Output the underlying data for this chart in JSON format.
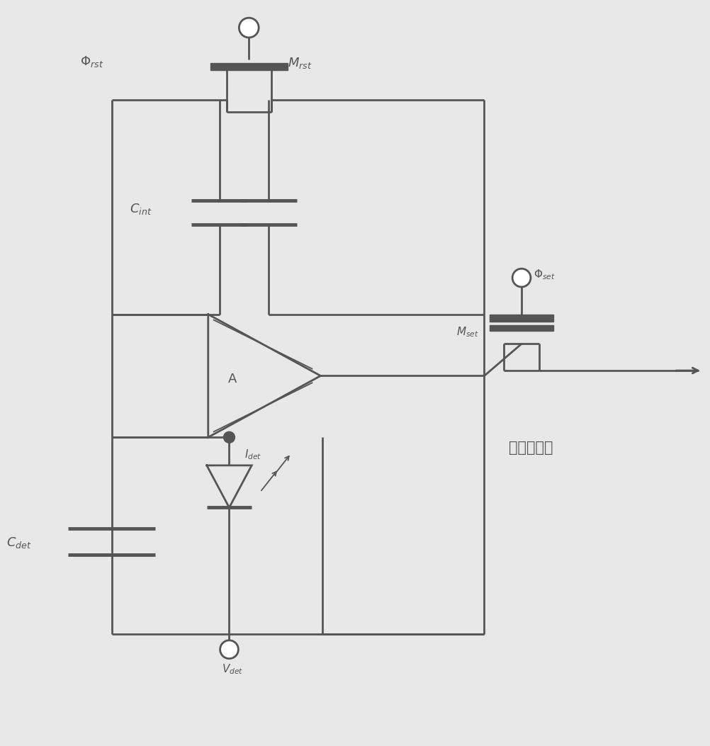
{
  "bg": "#e8e8e8",
  "lc": "#555555",
  "lw": 2.0,
  "lw_thick": 3.5,
  "labels": {
    "phi_rst": "$\\Phi_{rst}$",
    "M_rst": "$M_{rst}$",
    "C_int": "$C_{int}$",
    "A": "A",
    "M_set": "$M_{set}$",
    "phi_set": "$\\Phi_{set}$",
    "I_det": "$I_{det}$",
    "C_det": "$C_{det}$",
    "V_det": "$V_{det}$",
    "select": "至选通开关"
  },
  "fs": 13,
  "fs_small": 11,
  "fs_chinese": 15
}
